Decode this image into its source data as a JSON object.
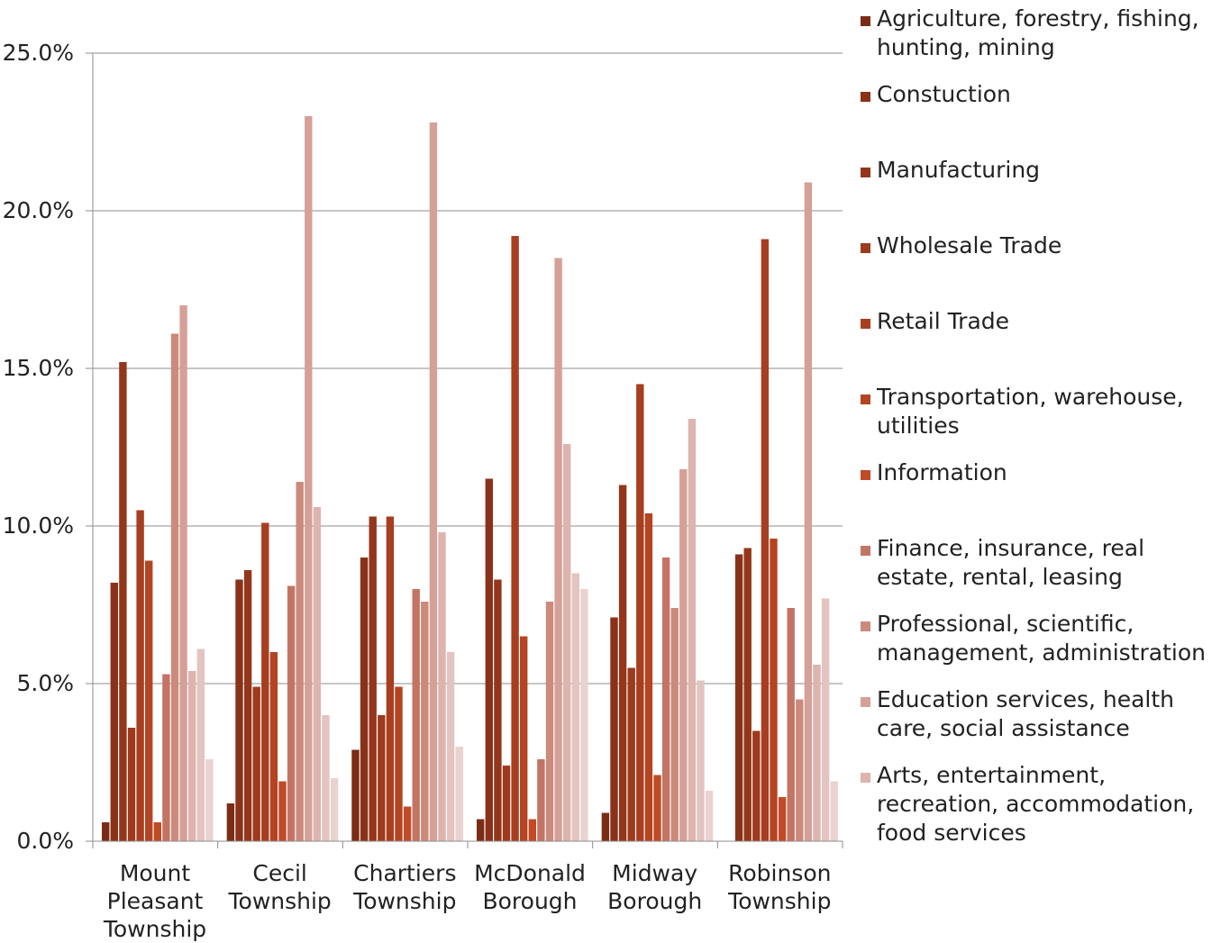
{
  "chart_data": {
    "type": "bar",
    "categories": [
      "Mount\nPleasant\nTownship",
      "Cecil\nTownship",
      "Chartiers\nTownship",
      "McDonald\nBorough",
      "Midway\nBorough",
      "Robinson\nTownship"
    ],
    "ylim": [
      0,
      25
    ],
    "yticks": [
      "0.0%",
      "5.0%",
      "10.0%",
      "15.0%",
      "20.0%",
      "25.0%"
    ],
    "grid": true,
    "legend_position": "right",
    "series": [
      {
        "name": "Agriculture, forestry, fishing,\nhunting, mining",
        "color": "#7B2C16",
        "values": [
          0.6,
          1.2,
          2.9,
          0.7,
          0.9,
          0.0
        ]
      },
      {
        "name": "Constuction",
        "color": "#8A3219",
        "values": [
          8.2,
          8.3,
          9.0,
          11.5,
          7.1,
          9.1
        ]
      },
      {
        "name": "Manufacturing",
        "color": "#94361B",
        "values": [
          15.2,
          8.6,
          10.3,
          8.3,
          11.3,
          9.3
        ]
      },
      {
        "name": "Wholesale Trade",
        "color": "#9E3A1D",
        "values": [
          3.6,
          4.9,
          4.0,
          2.4,
          5.5,
          3.5
        ]
      },
      {
        "name": "Retail Trade",
        "color": "#A83E20",
        "values": [
          10.5,
          10.1,
          10.3,
          19.2,
          14.5,
          19.1
        ]
      },
      {
        "name": "Transportation, warehouse,\nutilities",
        "color": "#B44422",
        "values": [
          8.9,
          6.0,
          4.9,
          6.5,
          10.4,
          9.6
        ]
      },
      {
        "name": "Information",
        "color": "#C04B26",
        "values": [
          0.6,
          1.9,
          1.1,
          0.7,
          2.1,
          1.4
        ]
      },
      {
        "name": "Finance, insurance, real\nestate, rental, leasing",
        "color": "#C47464",
        "values": [
          5.3,
          8.1,
          8.0,
          2.6,
          9.0,
          7.4
        ]
      },
      {
        "name": "Professional, scientific,\nmanagement, administration",
        "color": "#CB8A7C",
        "values": [
          16.1,
          11.4,
          7.6,
          7.6,
          7.4,
          4.5
        ]
      },
      {
        "name": "Education services, health\ncare, social assistance",
        "color": "#D5A098",
        "values": [
          17.0,
          23.0,
          22.8,
          18.5,
          11.8,
          20.9
        ]
      },
      {
        "name": "Arts, entertainment,\nrecreation, accommodation,\nfood services",
        "color": "#DDB4AE",
        "values": [
          5.4,
          10.6,
          9.8,
          12.6,
          13.4,
          5.6
        ]
      },
      {
        "name": "",
        "color": "#E3C4C0",
        "values": [
          6.1,
          4.0,
          6.0,
          8.5,
          5.1,
          7.7
        ]
      },
      {
        "name": "",
        "color": "#E9D2CF",
        "values": [
          2.6,
          2.0,
          3.0,
          8.0,
          1.6,
          1.9
        ]
      }
    ]
  }
}
